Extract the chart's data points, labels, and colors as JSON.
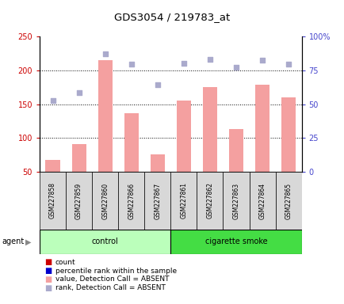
{
  "title": "GDS3054 / 219783_at",
  "samples": [
    "GSM227858",
    "GSM227859",
    "GSM227860",
    "GSM227866",
    "GSM227867",
    "GSM227861",
    "GSM227862",
    "GSM227863",
    "GSM227864",
    "GSM227865"
  ],
  "bar_values": [
    67,
    91,
    215,
    137,
    76,
    155,
    175,
    113,
    179,
    160
  ],
  "dot_values_left": [
    155,
    167,
    224,
    209,
    179,
    210,
    216,
    205,
    215,
    209
  ],
  "ylim_left": [
    50,
    250
  ],
  "ylim_right": [
    0,
    100
  ],
  "yticks_left": [
    50,
    100,
    150,
    200,
    250
  ],
  "yticks_right": [
    0,
    25,
    50,
    75,
    100
  ],
  "bar_color": "#f4a0a0",
  "dot_color": "#aaaacc",
  "left_axis_color": "#cc0000",
  "right_axis_color": "#4444cc",
  "grid_lines": [
    100,
    150,
    200
  ],
  "groups_def": [
    {
      "label": "control",
      "start": 0,
      "end": 5,
      "color": "#bbffbb"
    },
    {
      "label": "cigarette smoke",
      "start": 5,
      "end": 10,
      "color": "#44dd44"
    }
  ],
  "legend_items": [
    {
      "label": "count",
      "color": "#cc0000"
    },
    {
      "label": "percentile rank within the sample",
      "color": "#0000cc"
    },
    {
      "label": "value, Detection Call = ABSENT",
      "color": "#f4a0a0"
    },
    {
      "label": "rank, Detection Call = ABSENT",
      "color": "#aaaacc"
    }
  ],
  "agent_label": "agent"
}
